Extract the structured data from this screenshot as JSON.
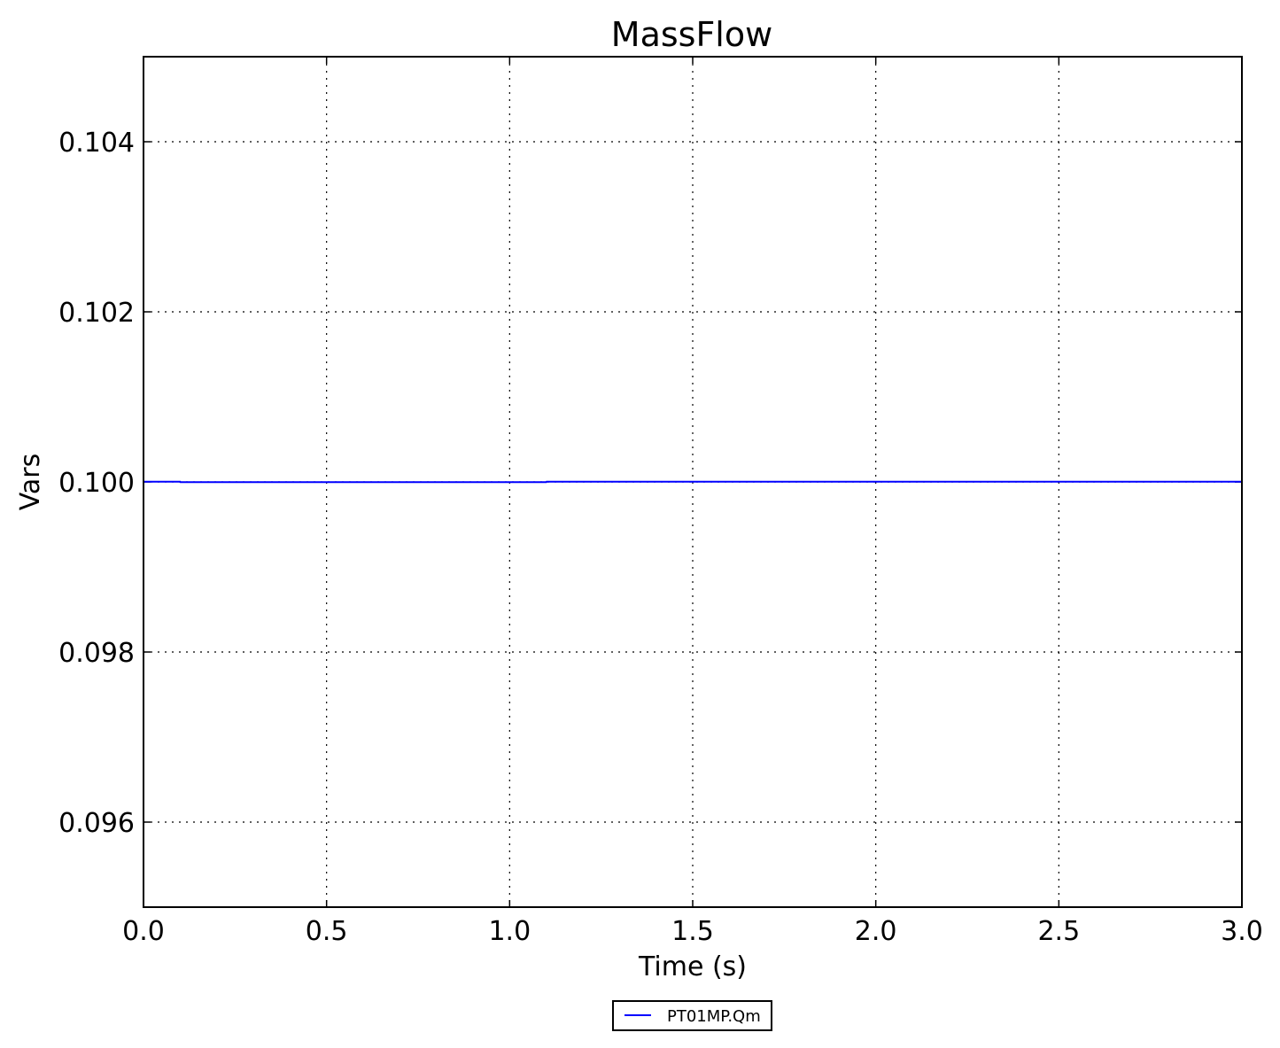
{
  "chart_data": {
    "type": "line",
    "title": "MassFlow",
    "xlabel": "Time (s)",
    "ylabel": "Vars",
    "xlim": [
      0.0,
      3.0
    ],
    "ylim": [
      0.095,
      0.105
    ],
    "xticks": [
      "0.0",
      "0.5",
      "1.0",
      "1.5",
      "2.0",
      "2.5",
      "3.0"
    ],
    "yticks": [
      "0.096",
      "0.098",
      "0.100",
      "0.102",
      "0.104"
    ],
    "grid": true,
    "legend_placement": "bottom-center",
    "series": [
      {
        "name": "PT01MP.Qm",
        "color": "#0000ff",
        "x": [
          0.0,
          0.1,
          0.101,
          1.1,
          1.101,
          3.0
        ],
        "y": [
          0.100003,
          0.100003,
          0.099997,
          0.099997,
          0.100002,
          0.100002
        ]
      }
    ]
  }
}
